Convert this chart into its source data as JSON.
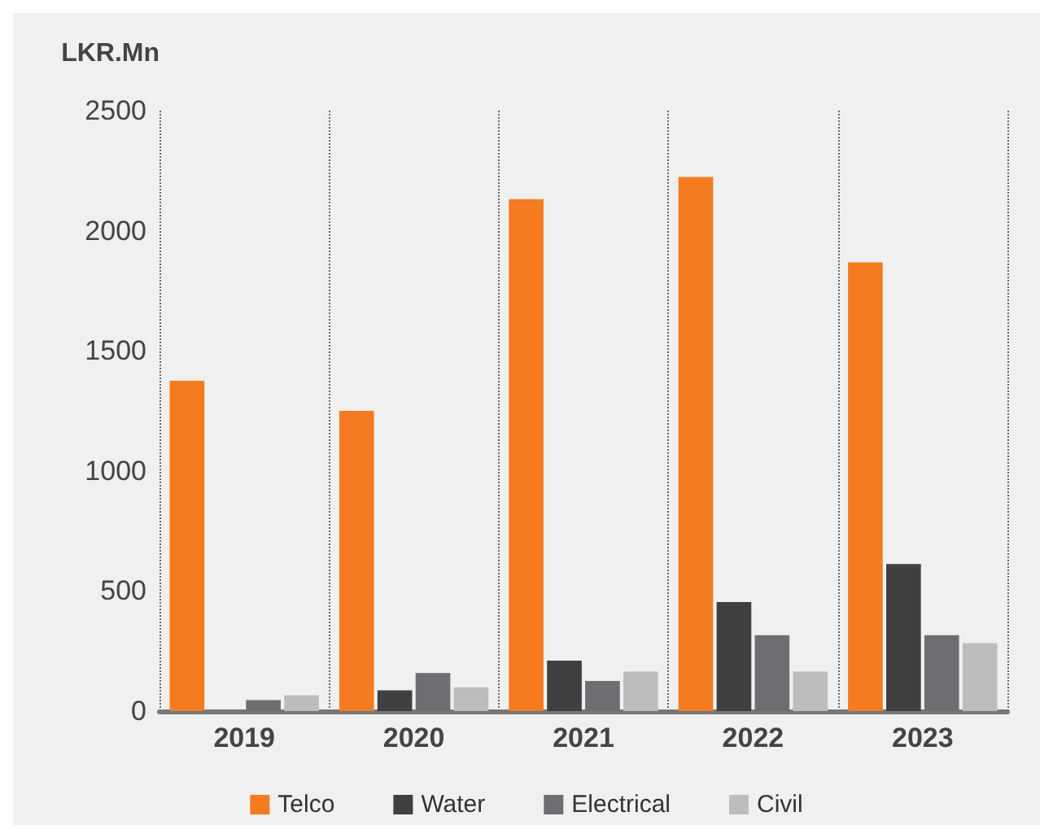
{
  "chart_data": {
    "type": "bar",
    "ylabel": "LKR.Mn",
    "categories": [
      "2019",
      "2020",
      "2021",
      "2022",
      "2023"
    ],
    "series": [
      {
        "name": "Telco",
        "color": "#f47b20",
        "values": [
          1375,
          1250,
          2132,
          2224,
          1868
        ]
      },
      {
        "name": "Water",
        "color": "#404042",
        "values": [
          null,
          86,
          210,
          454,
          612
        ]
      },
      {
        "name": "Electrical",
        "color": "#6d6e71",
        "values": [
          46,
          158,
          125,
          316,
          316
        ]
      },
      {
        "name": "Civil",
        "color": "#bcbdbf",
        "values": [
          66,
          99,
          164,
          164,
          283
        ]
      }
    ],
    "ylim": [
      0,
      2500
    ],
    "yticks": [
      0,
      500,
      1000,
      1500,
      2000,
      2500
    ],
    "grid": "x",
    "legend": "bottom"
  }
}
